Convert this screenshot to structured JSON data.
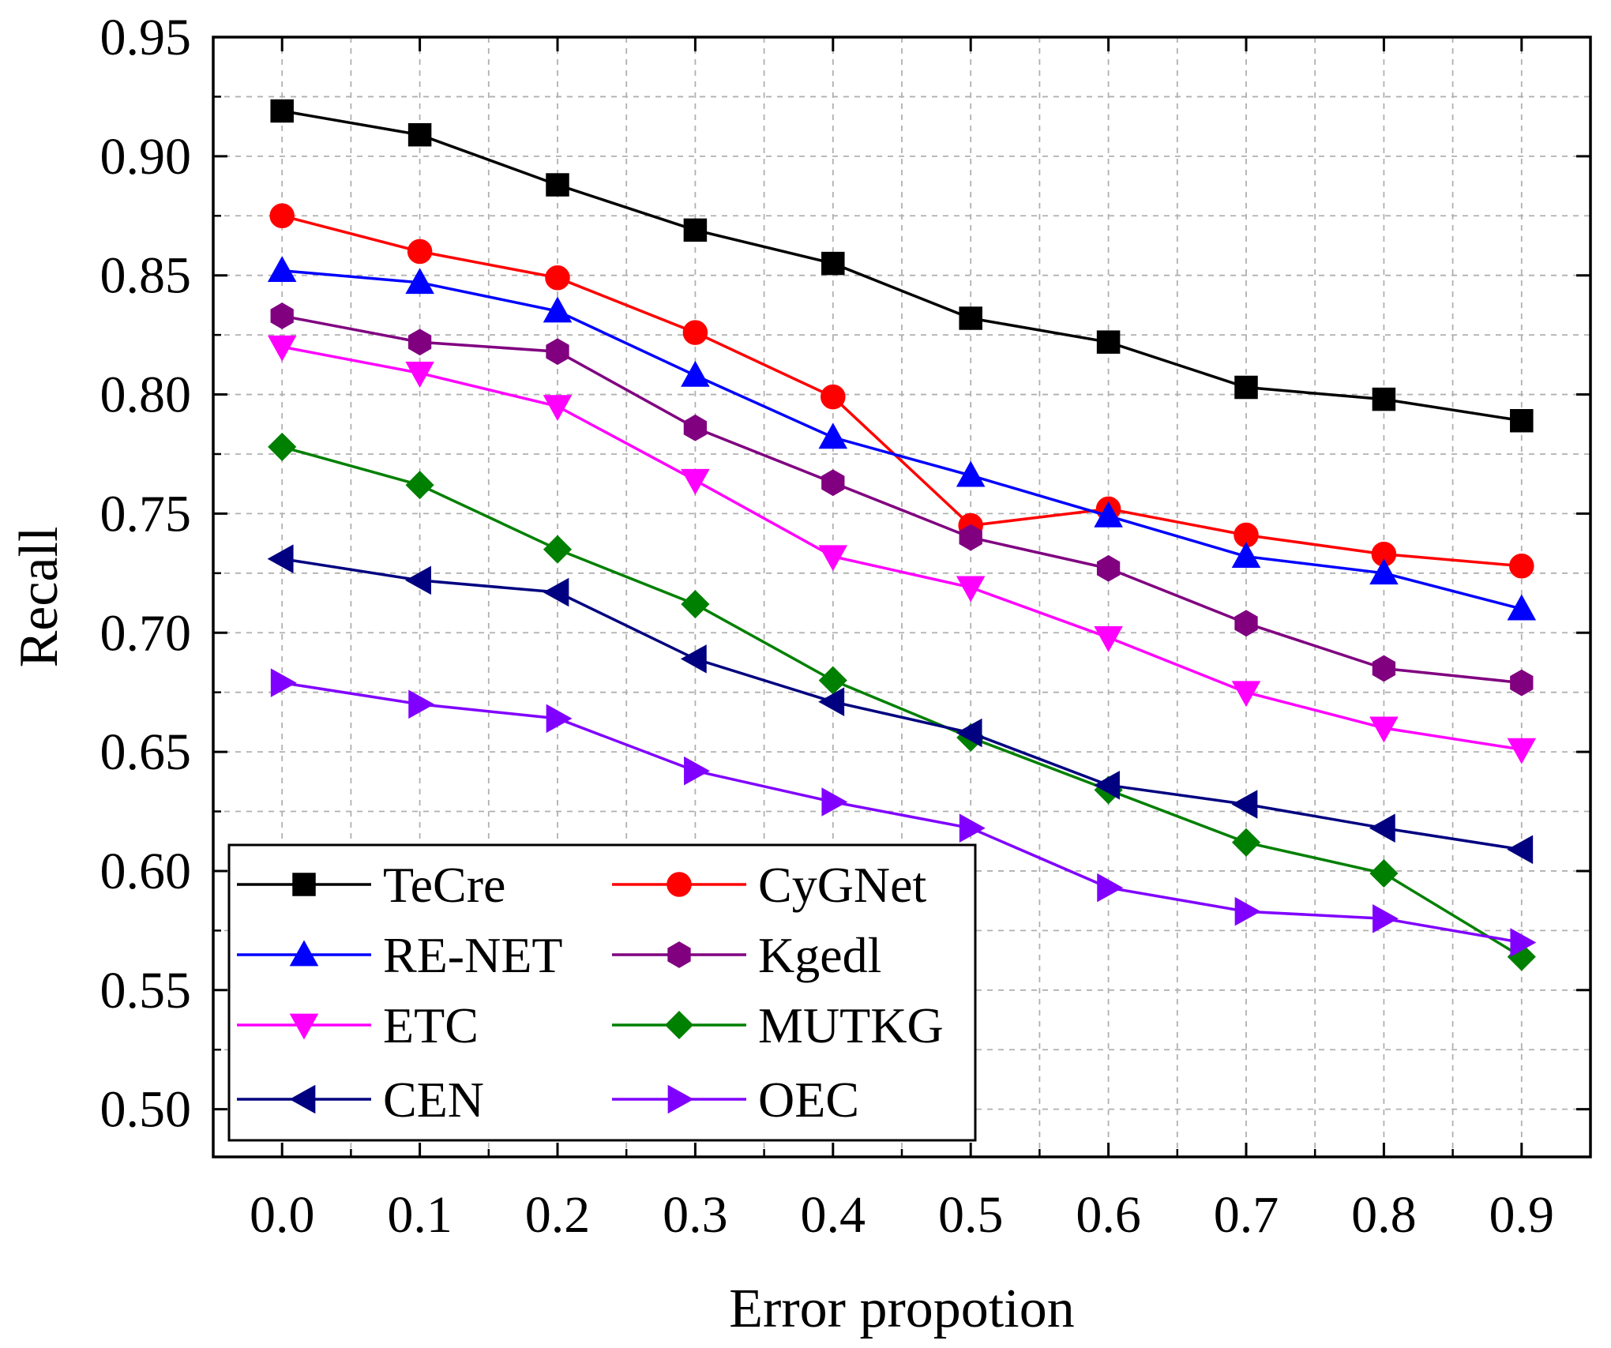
{
  "chart_data": {
    "type": "line",
    "title": "",
    "xlabel": "Error propotion",
    "ylabel": "Recall",
    "xlim": [
      -0.05,
      0.95
    ],
    "ylim": [
      0.48,
      0.95
    ],
    "grid": true,
    "legend_position": "bottom-left",
    "x": [
      0.0,
      0.1,
      0.2,
      0.3,
      0.4,
      0.5,
      0.6,
      0.7,
      0.8,
      0.9
    ],
    "x_tick_labels": [
      "0.0",
      "0.1",
      "0.2",
      "0.3",
      "0.4",
      "0.5",
      "0.6",
      "0.7",
      "0.8",
      "0.9"
    ],
    "y_ticks": [
      0.5,
      0.55,
      0.6,
      0.65,
      0.7,
      0.75,
      0.8,
      0.85,
      0.9,
      0.95
    ],
    "y_tick_labels": [
      "0.50",
      "0.55",
      "0.60",
      "0.65",
      "0.70",
      "0.75",
      "0.80",
      "0.85",
      "0.90",
      "0.95"
    ],
    "series": [
      {
        "name": "TeCre",
        "color": "#000000",
        "marker": "square",
        "values": [
          0.919,
          0.909,
          0.888,
          0.869,
          0.855,
          0.832,
          0.822,
          0.803,
          0.798,
          0.789
        ]
      },
      {
        "name": "CyGNet",
        "color": "#ff0000",
        "marker": "circle",
        "values": [
          0.875,
          0.86,
          0.849,
          0.826,
          0.799,
          0.745,
          0.752,
          0.741,
          0.733,
          0.728
        ]
      },
      {
        "name": "RE-NET",
        "color": "#0000ff",
        "marker": "triangle-up",
        "values": [
          0.852,
          0.847,
          0.835,
          0.808,
          0.782,
          0.766,
          0.749,
          0.732,
          0.725,
          0.71
        ]
      },
      {
        "name": "Kgedl",
        "color": "#800080",
        "marker": "hexagon",
        "values": [
          0.833,
          0.822,
          0.818,
          0.786,
          0.763,
          0.74,
          0.727,
          0.704,
          0.685,
          0.679
        ]
      },
      {
        "name": "ETC",
        "color": "#ff00ff",
        "marker": "triangle-down",
        "values": [
          0.82,
          0.809,
          0.795,
          0.764,
          0.732,
          0.719,
          0.698,
          0.675,
          0.66,
          0.651
        ]
      },
      {
        "name": "MUTKG",
        "color": "#008000",
        "marker": "diamond",
        "values": [
          0.778,
          0.762,
          0.735,
          0.712,
          0.68,
          0.656,
          0.634,
          0.612,
          0.599,
          0.564
        ]
      },
      {
        "name": "CEN",
        "color": "#000080",
        "marker": "triangle-left",
        "values": [
          0.731,
          0.722,
          0.717,
          0.689,
          0.671,
          0.658,
          0.636,
          0.628,
          0.618,
          0.609
        ]
      },
      {
        "name": "OEC",
        "color": "#8000ff",
        "marker": "triangle-right",
        "values": [
          0.679,
          0.67,
          0.664,
          0.642,
          0.629,
          0.618,
          0.593,
          0.583,
          0.58,
          0.57
        ]
      }
    ]
  }
}
